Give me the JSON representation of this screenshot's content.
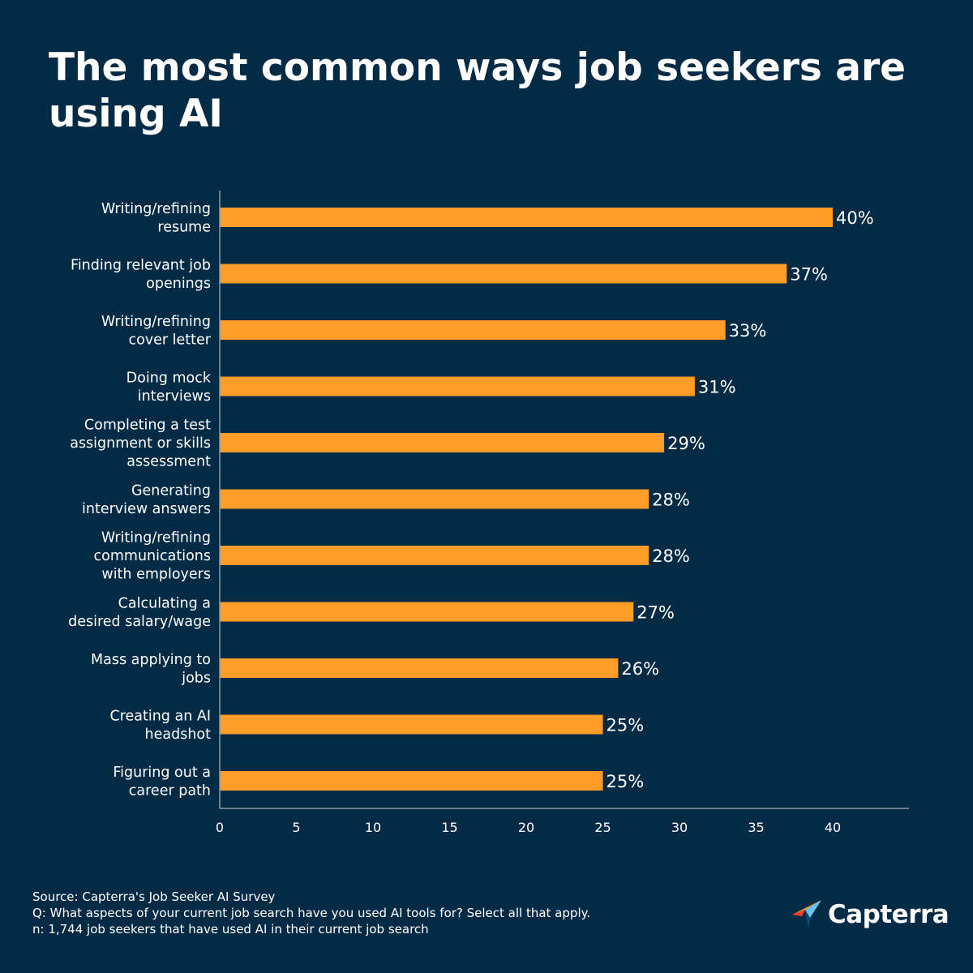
{
  "title": "The most common ways job seekers are using AI",
  "colors": {
    "background": "#032b45",
    "bar": "#ff9d28",
    "axis": "#8a9aa8",
    "text": "#ffffff"
  },
  "chart_data": {
    "type": "bar",
    "orientation": "horizontal",
    "title": "The most common ways job seekers are using AI",
    "xlabel": "",
    "ylabel": "",
    "xlim": [
      0,
      45
    ],
    "xticks": [
      0,
      5,
      10,
      15,
      20,
      25,
      30,
      35,
      40
    ],
    "grid": false,
    "value_suffix": "%",
    "categories": [
      [
        "Writing/refining",
        "resume"
      ],
      [
        "Finding relevant job",
        "openings"
      ],
      [
        "Writing/refining",
        "cover letter"
      ],
      [
        "Doing mock",
        "interviews"
      ],
      [
        "Completing a test",
        "assignment or skills",
        "assessment"
      ],
      [
        "Generating",
        "interview answers"
      ],
      [
        "Writing/refining",
        "communications",
        "with employers"
      ],
      [
        "Calculating a",
        "desired salary/wage"
      ],
      [
        "Mass applying to",
        "jobs"
      ],
      [
        "Creating an AI",
        "headshot"
      ],
      [
        "Figuring out a",
        "career path"
      ]
    ],
    "values": [
      40,
      37,
      33,
      31,
      29,
      28,
      28,
      27,
      26,
      25,
      25
    ],
    "value_labels": [
      "40%",
      "37%",
      "33%",
      "31%",
      "29%",
      "28%",
      "28%",
      "27%",
      "26%",
      "25%",
      "25%"
    ]
  },
  "footer": {
    "source": "Source: Capterra's Job Seeker AI Survey",
    "question": "Q: What aspects of your current job search have you used AI tools for? Select all that apply.",
    "sample": "n: 1,744 job seekers that have used AI in their current job search"
  },
  "logo": {
    "text": "Capterra",
    "icon": "capterra-arrow-icon"
  }
}
